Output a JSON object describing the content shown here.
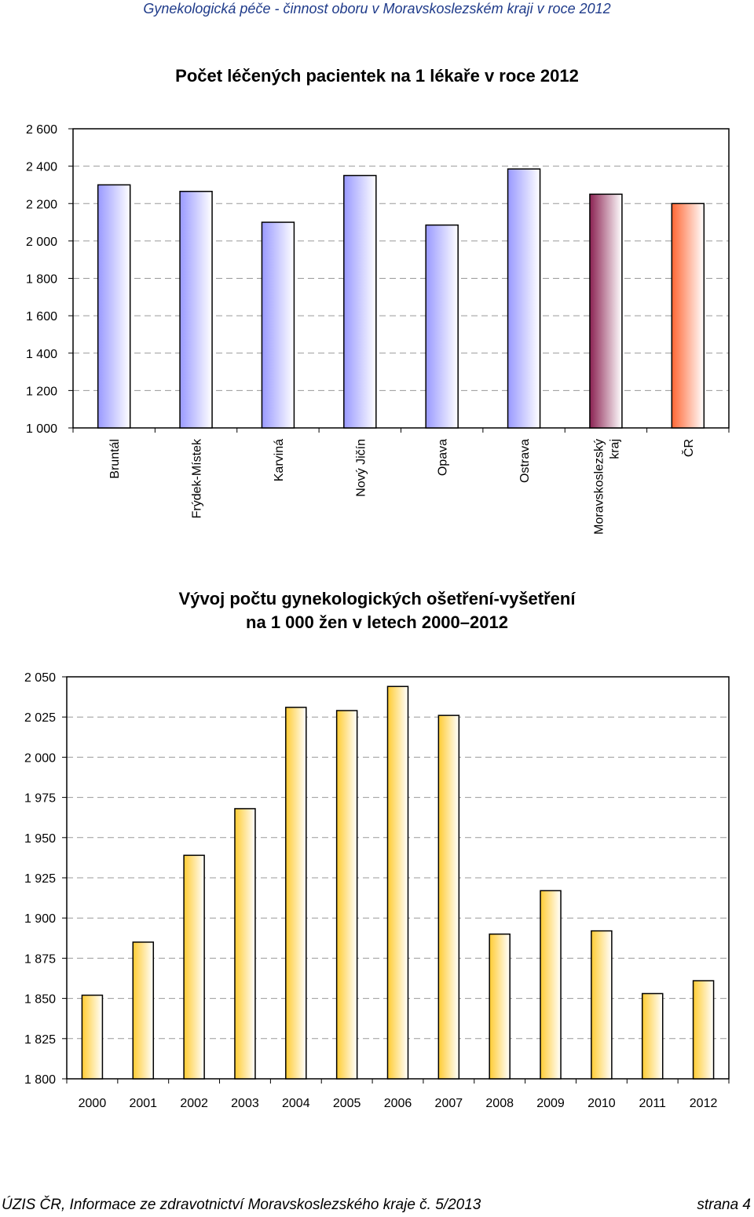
{
  "header": "Gynekologická péče - činnost oboru v Moravskoslezském kraji v roce 2012",
  "footer": {
    "left": "ÚZIS ČR, Informace ze zdravotnictví Moravskoslezského kraje č. 5/2013",
    "right": "strana 4"
  },
  "chart_data": [
    {
      "type": "bar",
      "title": "Počet léčených pacientek na 1 lékaře v roce 2012",
      "categories": [
        "Bruntál",
        "Frýdek-Místek",
        "Karviná",
        "Nový Jičín",
        "Opava",
        "Ostrava",
        "Moravskoslezský kraj",
        "ČR"
      ],
      "category_lines": [
        [
          "Bruntál"
        ],
        [
          "Frýdek-Místek"
        ],
        [
          "Karviná"
        ],
        [
          "Nový Jičín"
        ],
        [
          "Opava"
        ],
        [
          "Ostrava"
        ],
        [
          "Moravskoslezský",
          "kraj"
        ],
        [
          "ČR"
        ]
      ],
      "values": [
        2300,
        2265,
        2100,
        2350,
        2085,
        2385,
        2250,
        2200
      ],
      "ylim": [
        1000,
        2600
      ],
      "yticks": [
        1000,
        1200,
        1400,
        1600,
        1800,
        2000,
        2200,
        2400,
        2600
      ],
      "ytick_labels": [
        "1 000",
        "1 200",
        "1 400",
        "1 600",
        "1 800",
        "2 000",
        "2 200",
        "2 400",
        "2 600"
      ],
      "grid": "dashed",
      "legend": "none",
      "colors": [
        "#9999ff",
        "#9999ff",
        "#9999ff",
        "#9999ff",
        "#9999ff",
        "#9999ff",
        "#8b2252",
        "#ff6633"
      ]
    },
    {
      "type": "bar",
      "title": "Vývoj počtu gynekologických ošetření-vyšetření na 1 000 žen v letech 2000–2012",
      "title_lines": [
        "Vývoj počtu gynekologických ošetření-vyšetření",
        "na 1 000 žen v letech 2000–2012"
      ],
      "categories": [
        "2000",
        "2001",
        "2002",
        "2003",
        "2004",
        "2005",
        "2006",
        "2007",
        "2008",
        "2009",
        "2010",
        "2011",
        "2012"
      ],
      "values": [
        1852,
        1885,
        1939,
        1968,
        2031,
        2029,
        2044,
        2026,
        1890,
        1917,
        1892,
        1853,
        1861
      ],
      "ylim": [
        1800,
        2050
      ],
      "yticks": [
        1800,
        1825,
        1850,
        1875,
        1900,
        1925,
        1950,
        1975,
        2000,
        2025,
        2050
      ],
      "ytick_labels": [
        "1 800",
        "1 825",
        "1 850",
        "1 875",
        "1 900",
        "1 925",
        "1 950",
        "1 975",
        "2 000",
        "2 025",
        "2 050"
      ],
      "grid": "dashed",
      "legend": "none",
      "colors": [
        "#ffcc33"
      ]
    }
  ]
}
